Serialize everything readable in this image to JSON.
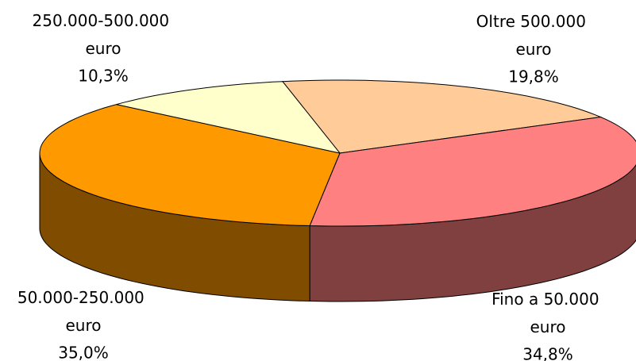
{
  "chart_data": {
    "type": "pie3d",
    "categories": [
      "Oltre 500.000 euro",
      "Fino a 50.000 euro",
      "50.000-250.000 euro",
      "250.000-500.000 euro"
    ],
    "values": [
      19.8,
      34.8,
      35.0,
      10.3
    ],
    "value_labels": [
      "19,8%",
      "34,8%",
      "35,0%",
      "10,3%"
    ],
    "colors": [
      "#FFCC99",
      "#FF8080",
      "#FF9900",
      "#FFFFCC"
    ],
    "side_colors": [
      "#806650",
      "#804040",
      "#7F4C00",
      "#80805F"
    ]
  }
}
